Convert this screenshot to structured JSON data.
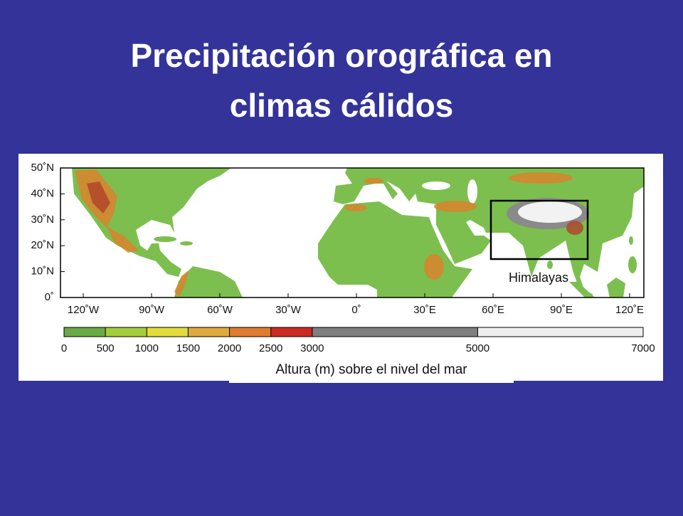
{
  "title_lines": [
    "Precipitación orográfica en",
    "climas cálidos"
  ],
  "map": {
    "lat_labels": [
      "50˚N",
      "40˚N",
      "30˚N",
      "20˚N",
      "10˚N",
      "0˚"
    ],
    "lon_labels": [
      "120˚W",
      "90˚W",
      "60˚W",
      "30˚W",
      "0˚",
      "30˚E",
      "60˚E",
      "90˚E",
      "120˚E"
    ],
    "annotation": "Himalayas"
  },
  "colorbar": {
    "lim": [
      0,
      7000
    ],
    "ticks": [
      0,
      500,
      1000,
      1500,
      2000,
      2500,
      3000,
      5000,
      7000
    ],
    "colors": [
      "#6aaa45",
      "#a4cc3c",
      "#e2dc3a",
      "#deaa3c",
      "#e07c30",
      "#cc2a22",
      "#7f7f7f",
      "#efefef"
    ]
  },
  "caption": "Altura (m) sobre el nivel del mar"
}
